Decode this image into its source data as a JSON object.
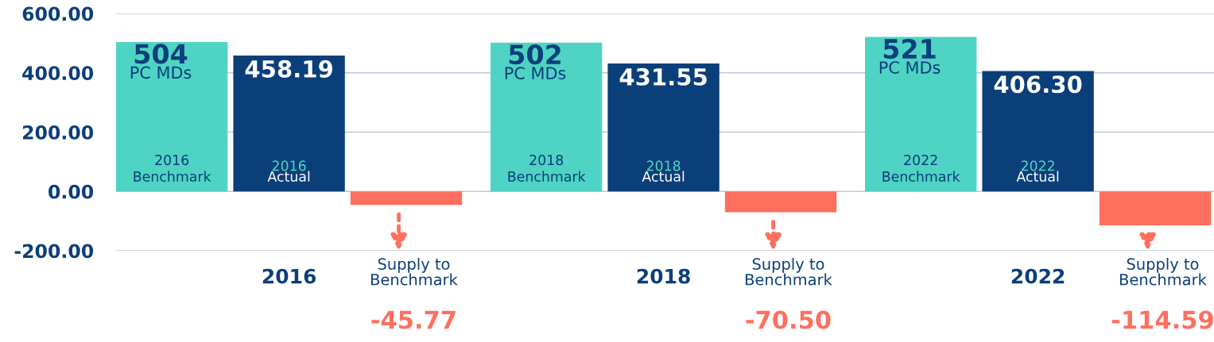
{
  "chart_data": {
    "type": "bar",
    "categories": [
      "2016",
      "2018",
      "2022"
    ],
    "series": [
      {
        "name": "Benchmark",
        "color": "#4fd3c4",
        "values": [
          504,
          502,
          521
        ],
        "value_labels": [
          "504",
          "502",
          "521"
        ]
      },
      {
        "name": "Actual",
        "color": "#0b3f7a",
        "values": [
          458.19,
          431.55,
          406.3
        ],
        "value_labels": [
          "458.19",
          "431.55",
          "406.30"
        ]
      },
      {
        "name": "Supply to Benchmark",
        "color": "#ff6f5e",
        "values": [
          -45.77,
          -70.5,
          -114.59
        ],
        "value_labels": [
          "-45.77",
          "-70.50",
          "-114.59"
        ]
      }
    ],
    "ylim": [
      -200,
      600
    ],
    "yticks": [
      {
        "value": -200,
        "label": "-200.00"
      },
      {
        "value": 0,
        "label": "0.00"
      },
      {
        "value": 200,
        "label": "200.00"
      },
      {
        "value": 400,
        "label": "400.00"
      },
      {
        "value": 600,
        "label": "600.00"
      }
    ],
    "grid": "y",
    "annotations": [
      "PC MDs",
      "PC MDs",
      "PC MDs"
    ]
  }
}
